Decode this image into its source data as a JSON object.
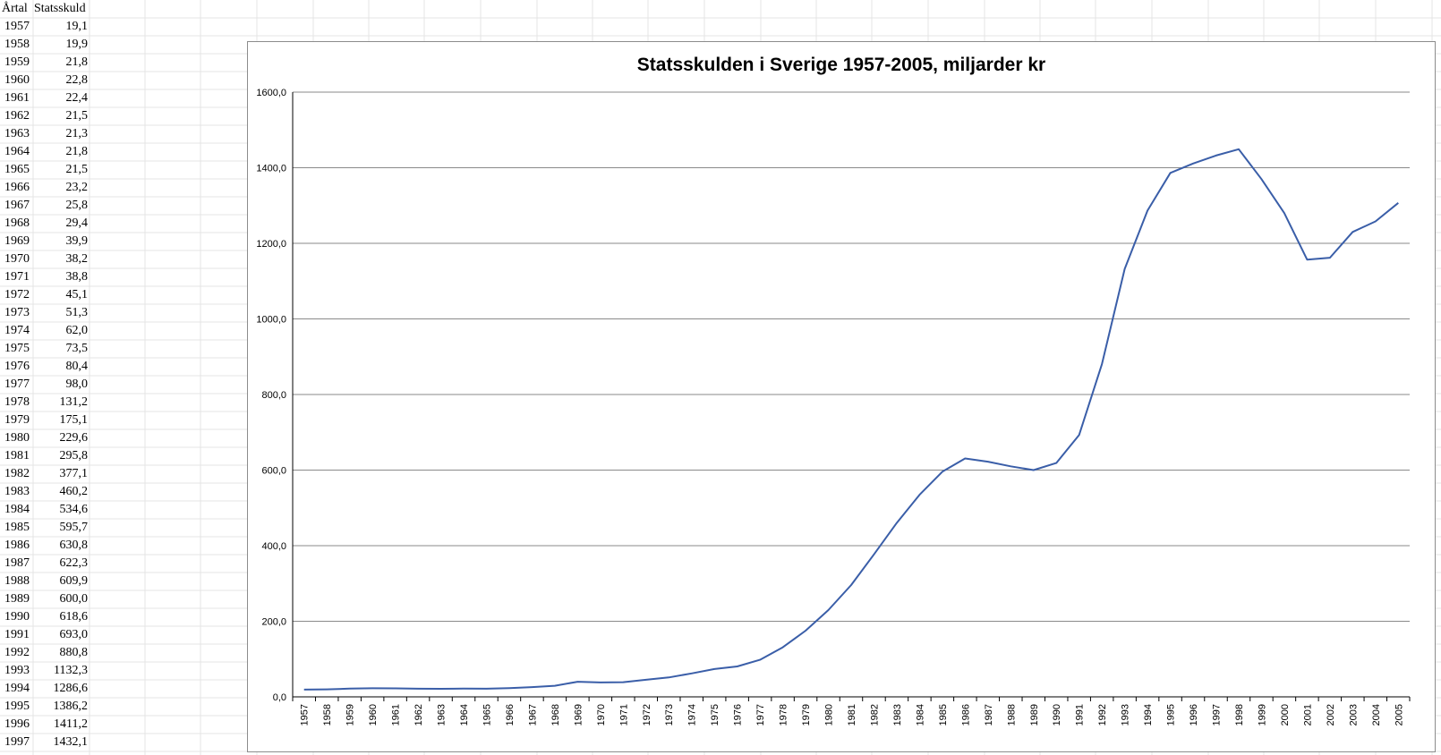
{
  "sheet": {
    "header_year": "Årtal",
    "header_value": "Statsskuld",
    "rows": [
      {
        "year": "1957",
        "value": "19,1"
      },
      {
        "year": "1958",
        "value": "19,9"
      },
      {
        "year": "1959",
        "value": "21,8"
      },
      {
        "year": "1960",
        "value": "22,8"
      },
      {
        "year": "1961",
        "value": "22,4"
      },
      {
        "year": "1962",
        "value": "21,5"
      },
      {
        "year": "1963",
        "value": "21,3"
      },
      {
        "year": "1964",
        "value": "21,8"
      },
      {
        "year": "1965",
        "value": "21,5"
      },
      {
        "year": "1966",
        "value": "23,2"
      },
      {
        "year": "1967",
        "value": "25,8"
      },
      {
        "year": "1968",
        "value": "29,4"
      },
      {
        "year": "1969",
        "value": "39,9"
      },
      {
        "year": "1970",
        "value": "38,2"
      },
      {
        "year": "1971",
        "value": "38,8"
      },
      {
        "year": "1972",
        "value": "45,1"
      },
      {
        "year": "1973",
        "value": "51,3"
      },
      {
        "year": "1974",
        "value": "62,0"
      },
      {
        "year": "1975",
        "value": "73,5"
      },
      {
        "year": "1976",
        "value": "80,4"
      },
      {
        "year": "1977",
        "value": "98,0"
      },
      {
        "year": "1978",
        "value": "131,2"
      },
      {
        "year": "1979",
        "value": "175,1"
      },
      {
        "year": "1980",
        "value": "229,6"
      },
      {
        "year": "1981",
        "value": "295,8"
      },
      {
        "year": "1982",
        "value": "377,1"
      },
      {
        "year": "1983",
        "value": "460,2"
      },
      {
        "year": "1984",
        "value": "534,6"
      },
      {
        "year": "1985",
        "value": "595,7"
      },
      {
        "year": "1986",
        "value": "630,8"
      },
      {
        "year": "1987",
        "value": "622,3"
      },
      {
        "year": "1988",
        "value": "609,9"
      },
      {
        "year": "1989",
        "value": "600,0"
      },
      {
        "year": "1990",
        "value": "618,6"
      },
      {
        "year": "1991",
        "value": "693,0"
      },
      {
        "year": "1992",
        "value": "880,8"
      },
      {
        "year": "1993",
        "value": "1132,3"
      },
      {
        "year": "1994",
        "value": "1286,6"
      },
      {
        "year": "1995",
        "value": "1386,2"
      },
      {
        "year": "1996",
        "value": "1411,2"
      },
      {
        "year": "1997",
        "value": "1432,1"
      }
    ]
  },
  "colors": {
    "line": "#3a5ea8",
    "gridline": "#8a8a8a",
    "sheet_grid": "#e4e4e4",
    "frame": "#8c8c8c"
  },
  "chart_data": {
    "type": "line",
    "title": "Statsskulden i Sverige 1957-2005, miljarder kr",
    "xlabel": "",
    "ylabel": "",
    "ylim": [
      0,
      1600
    ],
    "grid": true,
    "legend": "none",
    "y_ticks": [
      "0,0",
      "200,0",
      "400,0",
      "600,0",
      "800,0",
      "1000,0",
      "1200,0",
      "1400,0",
      "1600,0"
    ],
    "categories": [
      "1957",
      "1958",
      "1959",
      "1960",
      "1961",
      "1962",
      "1963",
      "1964",
      "1965",
      "1966",
      "1967",
      "1968",
      "1969",
      "1970",
      "1971",
      "1972",
      "1973",
      "1974",
      "1975",
      "1976",
      "1977",
      "1978",
      "1979",
      "1980",
      "1981",
      "1982",
      "1983",
      "1984",
      "1985",
      "1986",
      "1987",
      "1988",
      "1989",
      "1990",
      "1991",
      "1992",
      "1993",
      "1994",
      "1995",
      "1996",
      "1997",
      "1998",
      "1999",
      "2000",
      "2001",
      "2002",
      "2003",
      "2004",
      "2005"
    ],
    "values": [
      19.1,
      19.9,
      21.8,
      22.8,
      22.4,
      21.5,
      21.3,
      21.8,
      21.5,
      23.2,
      25.8,
      29.4,
      39.9,
      38.2,
      38.8,
      45.1,
      51.3,
      62.0,
      73.5,
      80.4,
      98.0,
      131.2,
      175.1,
      229.6,
      295.8,
      377.1,
      460.2,
      534.6,
      595.7,
      630.8,
      622.3,
      609.9,
      600.0,
      618.6,
      693.0,
      880.8,
      1132.3,
      1286.6,
      1386.2,
      1411.2,
      1432.1,
      1449,
      1370,
      1280,
      1157,
      1162,
      1230,
      1258,
      1307
    ]
  }
}
